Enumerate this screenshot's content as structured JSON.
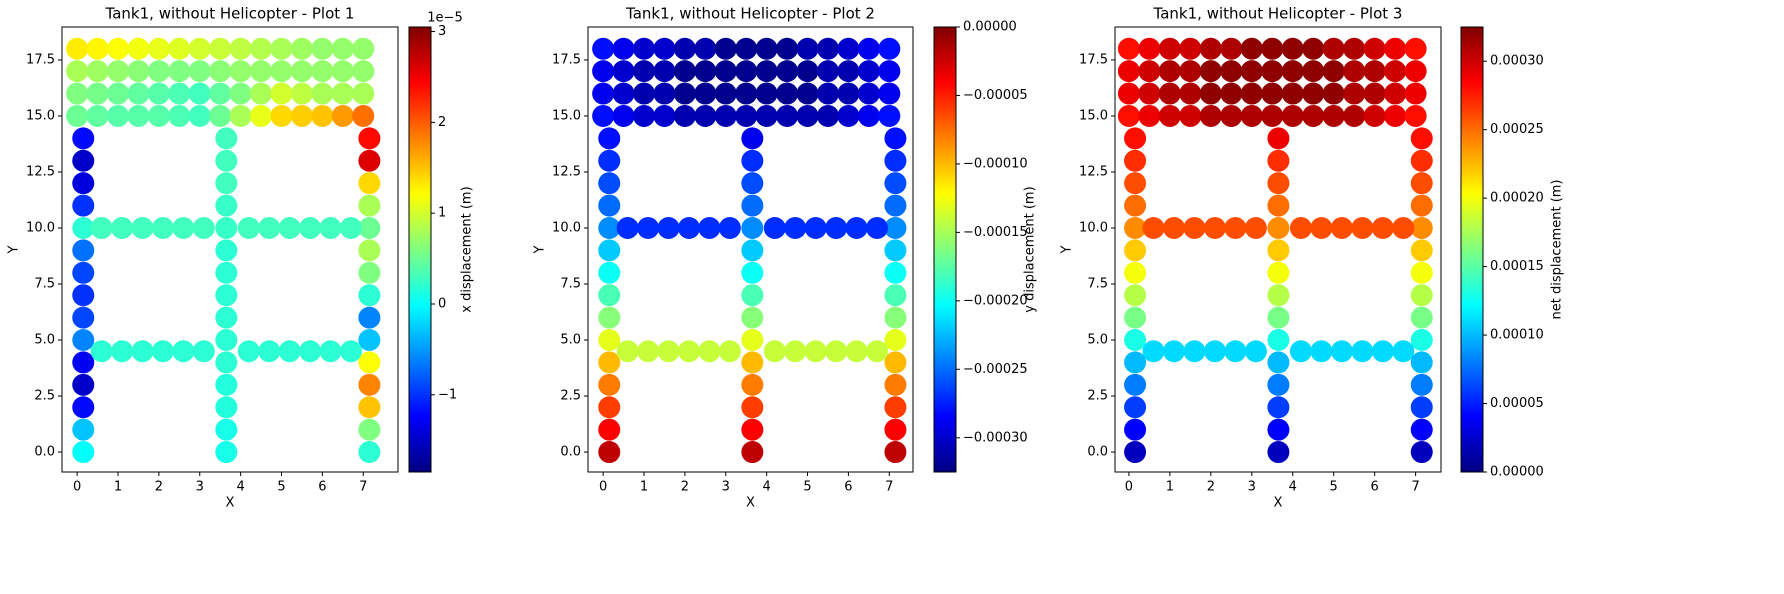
{
  "chart_data": [
    {
      "type": "scatter",
      "title": "Tank1, without Helicopter - Plot 1",
      "xlabel": "X",
      "ylabel": "Y",
      "cmap": "jet",
      "xlim": [
        -0.37,
        7.85
      ],
      "ylim": [
        -0.89,
        18.97
      ],
      "xticks": [
        0,
        1,
        2,
        3,
        4,
        5,
        6,
        7
      ],
      "yticks": [
        {
          "value": 0,
          "label": "0.0"
        },
        2.5,
        {
          "value": 5,
          "label": "5.0"
        },
        7.5,
        {
          "value": 10,
          "label": "10.0"
        },
        12.5,
        {
          "value": 15,
          "label": "15.0"
        },
        17.5
      ],
      "colorbar": {
        "label": "x displacement (m)",
        "offset_text": "1e−5",
        "lim": [
          -1.85,
          3.05
        ],
        "ticks": [
          {
            "value": -1,
            "label": "−1"
          },
          0,
          1,
          2,
          3
        ]
      },
      "x": [
        0.15,
        0.15,
        0.15,
        0.15,
        0.15,
        0.15,
        0.15,
        0.15,
        0.15,
        0.15,
        0.15,
        0.15,
        0.15,
        0.15,
        0.15,
        3.65,
        3.65,
        3.65,
        3.65,
        3.65,
        3.65,
        3.65,
        3.65,
        3.65,
        3.65,
        3.65,
        3.65,
        3.65,
        3.65,
        3.65,
        7.15,
        7.15,
        7.15,
        7.15,
        7.15,
        7.15,
        7.15,
        7.15,
        7.15,
        7.15,
        7.15,
        7.15,
        7.15,
        7.15,
        7.15,
        0.6,
        1.1,
        1.6,
        2.1,
        2.6,
        3.1,
        4.2,
        4.7,
        5.2,
        5.7,
        6.2,
        6.7,
        0.6,
        1.1,
        1.6,
        2.1,
        2.6,
        3.1,
        4.2,
        4.7,
        5.2,
        5.7,
        6.2,
        6.7,
        0,
        0.5,
        1,
        1.5,
        2,
        2.5,
        3,
        3.5,
        4,
        4.5,
        5,
        5.5,
        6,
        6.5,
        7,
        0,
        0.5,
        1,
        1.5,
        2,
        2.5,
        3,
        3.5,
        4,
        4.5,
        5,
        5.5,
        6,
        6.5,
        7,
        0,
        0.5,
        1,
        1.5,
        2,
        2.5,
        3,
        3.5,
        4,
        4.5,
        5,
        5.5,
        6,
        6.5,
        7,
        0,
        0.5,
        1,
        1.5,
        2,
        2.5,
        3,
        3.5,
        4,
        4.5,
        5,
        5.5,
        6,
        6.5,
        7
      ],
      "y": [
        0,
        1,
        2,
        3,
        4,
        5,
        6,
        7,
        8,
        9,
        10,
        11,
        12,
        13,
        14,
        0,
        1,
        2,
        3,
        4,
        5,
        6,
        7,
        8,
        9,
        10,
        11,
        12,
        13,
        14,
        0,
        1,
        2,
        3,
        4,
        5,
        6,
        7,
        8,
        9,
        10,
        11,
        12,
        13,
        14,
        4.5,
        4.5,
        4.5,
        4.5,
        4.5,
        4.5,
        4.5,
        4.5,
        4.5,
        4.5,
        4.5,
        4.5,
        10,
        10,
        10,
        10,
        10,
        10,
        10,
        10,
        10,
        10,
        10,
        10,
        15,
        15,
        15,
        15,
        15,
        15,
        15,
        15,
        15,
        15,
        15,
        15,
        15,
        15,
        15,
        16,
        16,
        16,
        16,
        16,
        16,
        16,
        16,
        16,
        16,
        16,
        16,
        16,
        16,
        16,
        17,
        17,
        17,
        17,
        17,
        17,
        17,
        17,
        17,
        17,
        17,
        17,
        17,
        17,
        17,
        18,
        18,
        18,
        18,
        18,
        18,
        18,
        18,
        18,
        18,
        18,
        18,
        18,
        18,
        18
      ],
      "values": [
        0.0,
        -0.3,
        -1.2,
        -1.5,
        -1.3,
        -0.6,
        -0.9,
        -1.0,
        -0.9,
        -0.7,
        0.2,
        -1.0,
        -1.4,
        -1.5,
        -1.2,
        0.1,
        0.1,
        0.15,
        0.15,
        0.2,
        0.2,
        0.2,
        0.2,
        0.2,
        0.2,
        0.25,
        0.25,
        0.3,
        0.3,
        0.3,
        0.2,
        0.6,
        1.5,
        1.8,
        1.2,
        -0.3,
        -0.6,
        0.2,
        0.6,
        0.8,
        0.5,
        0.8,
        1.4,
        2.6,
        2.4,
        0.2,
        0.2,
        0.2,
        0.2,
        0.2,
        0.2,
        0.2,
        0.2,
        0.2,
        0.2,
        0.2,
        0.2,
        0.3,
        0.3,
        0.3,
        0.3,
        0.3,
        0.3,
        0.3,
        0.3,
        0.3,
        0.3,
        0.3,
        0.3,
        0.5,
        0.45,
        0.4,
        0.4,
        0.4,
        0.35,
        0.3,
        0.5,
        0.8,
        1.1,
        1.4,
        1.45,
        1.5,
        1.7,
        1.9,
        0.6,
        0.55,
        0.5,
        0.45,
        0.4,
        0.35,
        0.3,
        0.45,
        0.6,
        0.8,
        1.0,
        0.9,
        0.8,
        0.8,
        0.8,
        0.8,
        0.75,
        0.7,
        0.65,
        0.6,
        0.6,
        0.6,
        0.65,
        0.7,
        0.7,
        0.7,
        0.7,
        0.7,
        0.7,
        0.7,
        1.3,
        1.25,
        1.2,
        1.15,
        1.1,
        1.05,
        1.0,
        0.95,
        0.9,
        0.85,
        0.8,
        0.75,
        0.7,
        0.7,
        0.7
      ]
    },
    {
      "type": "scatter",
      "title": "Tank1, without Helicopter - Plot 2",
      "xlabel": "X",
      "ylabel": "Y",
      "cmap": "jet",
      "xlim": [
        -0.37,
        7.58
      ],
      "ylim": [
        -0.89,
        18.97
      ],
      "xticks": [
        0,
        1,
        2,
        3,
        4,
        5,
        6,
        7
      ],
      "yticks": [
        {
          "value": 0,
          "label": "0.0"
        },
        2.5,
        {
          "value": 5,
          "label": "5.0"
        },
        7.5,
        {
          "value": 10,
          "label": "10.0"
        },
        12.5,
        {
          "value": 15,
          "label": "15.0"
        },
        17.5
      ],
      "colorbar": {
        "label": "y displacement (m)",
        "lim": [
          -0.000325,
          0
        ],
        "ticks": [
          {
            "value": -0.0003,
            "label": "−0.00030"
          },
          {
            "value": -0.00025,
            "label": "−0.00025"
          },
          {
            "value": -0.0002,
            "label": "−0.00020"
          },
          {
            "value": -0.00015,
            "label": "−0.00015"
          },
          {
            "value": -0.0001,
            "label": "−0.00010"
          },
          {
            "value": -5e-05,
            "label": "−0.00005"
          },
          {
            "value": 0,
            "label": "0.00000"
          }
        ]
      },
      "x": [
        0.15,
        0.15,
        0.15,
        0.15,
        0.15,
        0.15,
        0.15,
        0.15,
        0.15,
        0.15,
        0.15,
        0.15,
        0.15,
        0.15,
        0.15,
        3.65,
        3.65,
        3.65,
        3.65,
        3.65,
        3.65,
        3.65,
        3.65,
        3.65,
        3.65,
        3.65,
        3.65,
        3.65,
        3.65,
        3.65,
        7.15,
        7.15,
        7.15,
        7.15,
        7.15,
        7.15,
        7.15,
        7.15,
        7.15,
        7.15,
        7.15,
        7.15,
        7.15,
        7.15,
        7.15,
        0.6,
        1.1,
        1.6,
        2.1,
        2.6,
        3.1,
        4.2,
        4.7,
        5.2,
        5.7,
        6.2,
        6.7,
        0.6,
        1.1,
        1.6,
        2.1,
        2.6,
        3.1,
        4.2,
        4.7,
        5.2,
        5.7,
        6.2,
        6.7,
        0,
        0.5,
        1,
        1.5,
        2,
        2.5,
        3,
        3.5,
        4,
        4.5,
        5,
        5.5,
        6,
        6.5,
        7,
        0,
        0.5,
        1,
        1.5,
        2,
        2.5,
        3,
        3.5,
        4,
        4.5,
        5,
        5.5,
        6,
        6.5,
        7,
        0,
        0.5,
        1,
        1.5,
        2,
        2.5,
        3,
        3.5,
        4,
        4.5,
        5,
        5.5,
        6,
        6.5,
        7,
        0,
        0.5,
        1,
        1.5,
        2,
        2.5,
        3,
        3.5,
        4,
        4.5,
        5,
        5.5,
        6,
        6.5,
        7
      ],
      "y": [
        0,
        1,
        2,
        3,
        4,
        5,
        6,
        7,
        8,
        9,
        10,
        11,
        12,
        13,
        14,
        0,
        1,
        2,
        3,
        4,
        5,
        6,
        7,
        8,
        9,
        10,
        11,
        12,
        13,
        14,
        0,
        1,
        2,
        3,
        4,
        5,
        6,
        7,
        8,
        9,
        10,
        11,
        12,
        13,
        14,
        4.5,
        4.5,
        4.5,
        4.5,
        4.5,
        4.5,
        4.5,
        4.5,
        4.5,
        4.5,
        4.5,
        4.5,
        10,
        10,
        10,
        10,
        10,
        10,
        10,
        10,
        10,
        10,
        10,
        10,
        15,
        15,
        15,
        15,
        15,
        15,
        15,
        15,
        15,
        15,
        15,
        15,
        15,
        15,
        15,
        16,
        16,
        16,
        16,
        16,
        16,
        16,
        16,
        16,
        16,
        16,
        16,
        16,
        16,
        16,
        17,
        17,
        17,
        17,
        17,
        17,
        17,
        17,
        17,
        17,
        17,
        17,
        17,
        17,
        17,
        18,
        18,
        18,
        18,
        18,
        18,
        18,
        18,
        18,
        18,
        18,
        18,
        18,
        18,
        18
      ],
      "values": [
        -2e-05,
        -4e-05,
        -6e-05,
        -8e-05,
        -0.0001,
        -0.00013,
        -0.00016,
        -0.00018,
        -0.0002,
        -0.00022,
        -0.00024,
        -0.00025,
        -0.00026,
        -0.00027,
        -0.00028,
        -2e-05,
        -4e-05,
        -6e-05,
        -8e-05,
        -0.0001,
        -0.00013,
        -0.00016,
        -0.00018,
        -0.0002,
        -0.00022,
        -0.00024,
        -0.00025,
        -0.00026,
        -0.00027,
        -0.00029,
        -2e-05,
        -4e-05,
        -6e-05,
        -8e-05,
        -0.0001,
        -0.00013,
        -0.00016,
        -0.00018,
        -0.0002,
        -0.00022,
        -0.00024,
        -0.00025,
        -0.00026,
        -0.00027,
        -0.00028,
        -0.00014,
        -0.00014,
        -0.00014,
        -0.00014,
        -0.00014,
        -0.00014,
        -0.00014,
        -0.00014,
        -0.00014,
        -0.00014,
        -0.00014,
        -0.00014,
        -0.00027,
        -0.00027,
        -0.00027,
        -0.00027,
        -0.00027,
        -0.00027,
        -0.00027,
        -0.00027,
        -0.00027,
        -0.00027,
        -0.00027,
        -0.00027,
        -0.00028,
        -0.00029,
        -0.0003,
        -0.0003,
        -0.00031,
        -0.00031,
        -0.00031,
        -0.00031,
        -0.00031,
        -0.00031,
        -0.00031,
        -0.00031,
        -0.0003,
        -0.00029,
        -0.00028,
        -0.00029,
        -0.0003,
        -0.00031,
        -0.00031,
        -0.00032,
        -0.00032,
        -0.00032,
        -0.00032,
        -0.00032,
        -0.00032,
        -0.00032,
        -0.00031,
        -0.00031,
        -0.0003,
        -0.00029,
        -0.00029,
        -0.0003,
        -0.00031,
        -0.00031,
        -0.00032,
        -0.00032,
        -0.00032,
        -0.00032,
        -0.00032,
        -0.00032,
        -0.00032,
        -0.00031,
        -0.00031,
        -0.0003,
        -0.00029,
        -0.00028,
        -0.00029,
        -0.0003,
        -0.0003,
        -0.00031,
        -0.00031,
        -0.00032,
        -0.00032,
        -0.00032,
        -0.00032,
        -0.00031,
        -0.00031,
        -0.0003,
        -0.00029,
        -0.00028
      ]
    },
    {
      "type": "scatter",
      "title": "Tank1, without Helicopter - Plot 3",
      "xlabel": "X",
      "ylabel": "Y",
      "cmap": "jet",
      "xlim": [
        -0.34,
        7.62
      ],
      "ylim": [
        -0.89,
        18.97
      ],
      "xticks": [
        0,
        1,
        2,
        3,
        4,
        5,
        6,
        7
      ],
      "yticks": [
        {
          "value": 0,
          "label": "0.0"
        },
        2.5,
        {
          "value": 5,
          "label": "5.0"
        },
        7.5,
        {
          "value": 10,
          "label": "10.0"
        },
        12.5,
        {
          "value": 15,
          "label": "15.0"
        },
        17.5
      ],
      "colorbar": {
        "label": "net displacement (m)",
        "lim": [
          0,
          0.000325
        ],
        "ticks": [
          {
            "value": 0,
            "label": "0.00000"
          },
          5e-05,
          {
            "value": 0.0001,
            "label": "0.00010"
          },
          0.00015,
          {
            "value": 0.0002,
            "label": "0.00020"
          },
          0.00025,
          {
            "value": 0.0003,
            "label": "0.00030"
          }
        ]
      },
      "x": [
        0.15,
        0.15,
        0.15,
        0.15,
        0.15,
        0.15,
        0.15,
        0.15,
        0.15,
        0.15,
        0.15,
        0.15,
        0.15,
        0.15,
        0.15,
        3.65,
        3.65,
        3.65,
        3.65,
        3.65,
        3.65,
        3.65,
        3.65,
        3.65,
        3.65,
        3.65,
        3.65,
        3.65,
        3.65,
        3.65,
        7.15,
        7.15,
        7.15,
        7.15,
        7.15,
        7.15,
        7.15,
        7.15,
        7.15,
        7.15,
        7.15,
        7.15,
        7.15,
        7.15,
        7.15,
        0.6,
        1.1,
        1.6,
        2.1,
        2.6,
        3.1,
        4.2,
        4.7,
        5.2,
        5.7,
        6.2,
        6.7,
        0.6,
        1.1,
        1.6,
        2.1,
        2.6,
        3.1,
        4.2,
        4.7,
        5.2,
        5.7,
        6.2,
        6.7,
        0,
        0.5,
        1,
        1.5,
        2,
        2.5,
        3,
        3.5,
        4,
        4.5,
        5,
        5.5,
        6,
        6.5,
        7,
        0,
        0.5,
        1,
        1.5,
        2,
        2.5,
        3,
        3.5,
        4,
        4.5,
        5,
        5.5,
        6,
        6.5,
        7,
        0,
        0.5,
        1,
        1.5,
        2,
        2.5,
        3,
        3.5,
        4,
        4.5,
        5,
        5.5,
        6,
        6.5,
        7,
        0,
        0.5,
        1,
        1.5,
        2,
        2.5,
        3,
        3.5,
        4,
        4.5,
        5,
        5.5,
        6,
        6.5,
        7
      ],
      "y": [
        0,
        1,
        2,
        3,
        4,
        5,
        6,
        7,
        8,
        9,
        10,
        11,
        12,
        13,
        14,
        0,
        1,
        2,
        3,
        4,
        5,
        6,
        7,
        8,
        9,
        10,
        11,
        12,
        13,
        14,
        0,
        1,
        2,
        3,
        4,
        5,
        6,
        7,
        8,
        9,
        10,
        11,
        12,
        13,
        14,
        4.5,
        4.5,
        4.5,
        4.5,
        4.5,
        4.5,
        4.5,
        4.5,
        4.5,
        4.5,
        4.5,
        4.5,
        10,
        10,
        10,
        10,
        10,
        10,
        10,
        10,
        10,
        10,
        10,
        10,
        15,
        15,
        15,
        15,
        15,
        15,
        15,
        15,
        15,
        15,
        15,
        15,
        15,
        15,
        15,
        16,
        16,
        16,
        16,
        16,
        16,
        16,
        16,
        16,
        16,
        16,
        16,
        16,
        16,
        16,
        17,
        17,
        17,
        17,
        17,
        17,
        17,
        17,
        17,
        17,
        17,
        17,
        17,
        17,
        17,
        18,
        18,
        18,
        18,
        18,
        18,
        18,
        18,
        18,
        18,
        18,
        18,
        18,
        18,
        18
      ],
      "values": [
        2e-05,
        4e-05,
        6e-05,
        8e-05,
        0.0001,
        0.00013,
        0.00016,
        0.00018,
        0.0002,
        0.00022,
        0.00024,
        0.00025,
        0.00026,
        0.00027,
        0.00028,
        2e-05,
        4e-05,
        6e-05,
        8e-05,
        0.0001,
        0.00013,
        0.00016,
        0.00018,
        0.0002,
        0.00022,
        0.00024,
        0.00025,
        0.00026,
        0.00027,
        0.00029,
        2e-05,
        4e-05,
        6e-05,
        8e-05,
        0.0001,
        0.00013,
        0.00016,
        0.00018,
        0.0002,
        0.00022,
        0.00024,
        0.00025,
        0.00026,
        0.00027,
        0.00028,
        0.00011,
        0.00011,
        0.00011,
        0.00011,
        0.00011,
        0.00011,
        0.00011,
        0.00011,
        0.00011,
        0.00011,
        0.00011,
        0.00011,
        0.00026,
        0.00026,
        0.00026,
        0.00026,
        0.00026,
        0.00026,
        0.00026,
        0.00026,
        0.00026,
        0.00026,
        0.00026,
        0.00026,
        0.00028,
        0.00029,
        0.0003,
        0.0003,
        0.00031,
        0.00031,
        0.00031,
        0.00031,
        0.00031,
        0.00031,
        0.00031,
        0.00031,
        0.0003,
        0.00029,
        0.00028,
        0.00029,
        0.0003,
        0.00031,
        0.00031,
        0.00032,
        0.00032,
        0.00032,
        0.00032,
        0.00032,
        0.00032,
        0.00032,
        0.00031,
        0.00031,
        0.0003,
        0.00029,
        0.00029,
        0.0003,
        0.00031,
        0.00031,
        0.00032,
        0.00032,
        0.00032,
        0.00032,
        0.00032,
        0.00032,
        0.00032,
        0.00031,
        0.00031,
        0.0003,
        0.00029,
        0.00028,
        0.00029,
        0.0003,
        0.0003,
        0.00031,
        0.00031,
        0.00032,
        0.00032,
        0.00032,
        0.00032,
        0.00031,
        0.00031,
        0.0003,
        0.00029,
        0.00028
      ]
    }
  ]
}
